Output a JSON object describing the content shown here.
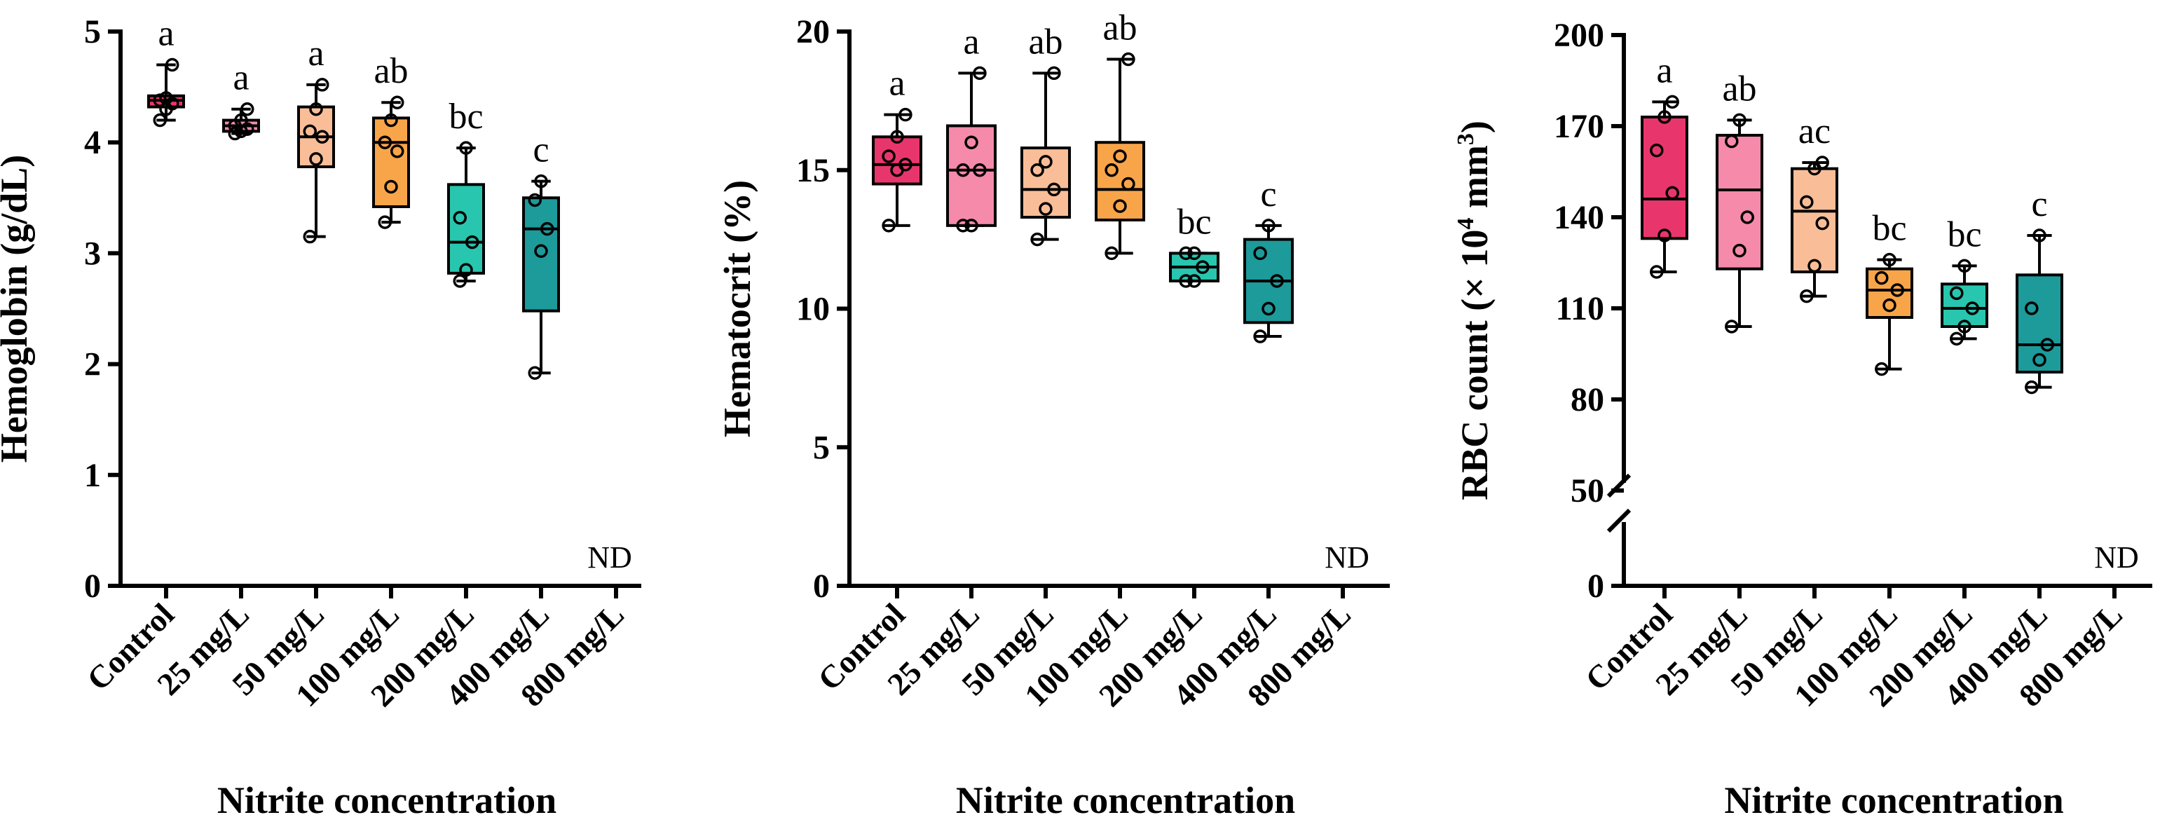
{
  "chart_data": [
    {
      "type": "box",
      "ylabel": "Hemoglobin (g/dL)",
      "xlabel": "Nitrite concentration",
      "categories": [
        "Control",
        "25 mg/L",
        "50 mg/L",
        "100 mg/L",
        "200 mg/L",
        "400 mg/L",
        "800 mg/L"
      ],
      "ylim": [
        0,
        5
      ],
      "yticks": [
        "0",
        "1",
        "2",
        "3",
        "4",
        "5"
      ],
      "nd_label": "ND",
      "colors": [
        "#e8366d",
        "#f58aaa",
        "#f9be98",
        "#f8a54a",
        "#28c6ae",
        "#1d9a9a"
      ],
      "groups": [
        {
          "label": "a",
          "min": 4.2,
          "q1": 4.32,
          "median": 4.38,
          "q3": 4.42,
          "max": 4.7,
          "points": [
            4.2,
            4.3,
            4.35,
            4.38,
            4.4,
            4.7
          ]
        },
        {
          "label": "a",
          "min": 4.08,
          "q1": 4.1,
          "median": 4.15,
          "q3": 4.2,
          "max": 4.3,
          "points": [
            4.08,
            4.1,
            4.12,
            4.15,
            4.2,
            4.3
          ]
        },
        {
          "label": "a",
          "min": 3.15,
          "q1": 3.78,
          "median": 4.05,
          "q3": 4.32,
          "max": 4.52,
          "points": [
            3.15,
            3.85,
            4.05,
            4.1,
            4.3,
            4.52
          ]
        },
        {
          "label": "ab",
          "min": 3.28,
          "q1": 3.42,
          "median": 4.0,
          "q3": 4.22,
          "max": 4.36,
          "points": [
            3.28,
            3.6,
            3.92,
            4.0,
            4.2,
            4.36
          ]
        },
        {
          "label": "bc",
          "min": 2.75,
          "q1": 2.82,
          "median": 3.1,
          "q3": 3.62,
          "max": 3.95,
          "points": [
            2.75,
            2.85,
            3.1,
            3.32,
            3.95
          ]
        },
        {
          "label": "c",
          "min": 1.92,
          "q1": 2.48,
          "median": 3.22,
          "q3": 3.5,
          "max": 3.65,
          "points": [
            1.92,
            3.02,
            3.22,
            3.48,
            3.65
          ]
        },
        null
      ]
    },
    {
      "type": "box",
      "ylabel": "Hematocrit (%)",
      "xlabel": "Nitrite concentration",
      "categories": [
        "Control",
        "25 mg/L",
        "50 mg/L",
        "100 mg/L",
        "200 mg/L",
        "400 mg/L",
        "800 mg/L"
      ],
      "ylim": [
        0,
        20
      ],
      "yticks": [
        "0",
        "5",
        "10",
        "15",
        "20"
      ],
      "nd_label": "ND",
      "colors": [
        "#e8366d",
        "#f58aaa",
        "#f9be98",
        "#f8a54a",
        "#28c6ae",
        "#1d9a9a"
      ],
      "groups": [
        {
          "label": "a",
          "min": 13.0,
          "q1": 14.5,
          "median": 15.2,
          "q3": 16.2,
          "max": 17.0,
          "points": [
            13.0,
            15.0,
            15.2,
            15.5,
            16.2,
            17.0
          ]
        },
        {
          "label": "a",
          "min": 13.0,
          "q1": 13.0,
          "median": 15.0,
          "q3": 16.6,
          "max": 18.5,
          "points": [
            13.0,
            13.0,
            15.0,
            15.0,
            16.0,
            18.5
          ]
        },
        {
          "label": "ab",
          "min": 12.5,
          "q1": 13.3,
          "median": 14.3,
          "q3": 15.8,
          "max": 18.5,
          "points": [
            12.5,
            13.6,
            14.3,
            15.0,
            15.3,
            18.5
          ]
        },
        {
          "label": "ab",
          "min": 12.0,
          "q1": 13.2,
          "median": 14.3,
          "q3": 16.0,
          "max": 19.0,
          "points": [
            12.0,
            13.7,
            14.5,
            15.0,
            15.5,
            19.0
          ]
        },
        {
          "label": "bc",
          "min": 11.0,
          "q1": 11.0,
          "median": 11.5,
          "q3": 12.0,
          "max": 12.0,
          "points": [
            11.0,
            11.0,
            11.5,
            12.0,
            12.0
          ]
        },
        {
          "label": "c",
          "min": 9.0,
          "q1": 9.5,
          "median": 11.0,
          "q3": 12.5,
          "max": 13.0,
          "points": [
            9.0,
            10.0,
            11.0,
            12.0,
            13.0
          ]
        },
        null
      ]
    },
    {
      "type": "box",
      "ylabel_parts": [
        "RBC count (× 10",
        "4",
        " mm",
        "3",
        ")"
      ],
      "xlabel": "Nitrite concentration",
      "categories": [
        "Control",
        "25 mg/L",
        "50 mg/L",
        "100 mg/L",
        "200 mg/L",
        "400 mg/L",
        "800 mg/L"
      ],
      "ylim": [
        50,
        200
      ],
      "yticks": [
        "50",
        "80",
        "110",
        "140",
        "170",
        "200"
      ],
      "ytick_zero": "0",
      "axis_break": true,
      "nd_label": "ND",
      "colors": [
        "#e8366d",
        "#f58aaa",
        "#f9be98",
        "#f8a54a",
        "#28c6ae",
        "#1d9a9a"
      ],
      "groups": [
        {
          "label": "a",
          "min": 122,
          "q1": 133,
          "median": 146,
          "q3": 173,
          "max": 178,
          "points": [
            122,
            134,
            148,
            162,
            173,
            178
          ]
        },
        {
          "label": "ab",
          "min": 104,
          "q1": 123,
          "median": 149,
          "q3": 167,
          "max": 172,
          "points": [
            104,
            129,
            140,
            165,
            172
          ]
        },
        {
          "label": "ac",
          "min": 114,
          "q1": 122,
          "median": 142,
          "q3": 156,
          "max": 158,
          "points": [
            114,
            124,
            138,
            145,
            156,
            158
          ]
        },
        {
          "label": "bc",
          "min": 90,
          "q1": 107,
          "median": 116,
          "q3": 123,
          "max": 126,
          "points": [
            90,
            111,
            116,
            120,
            126
          ]
        },
        {
          "label": "bc",
          "min": 100,
          "q1": 104,
          "median": 110,
          "q3": 118,
          "max": 124,
          "points": [
            100,
            104,
            110,
            115,
            124
          ]
        },
        {
          "label": "c",
          "min": 84,
          "q1": 89,
          "median": 98,
          "q3": 121,
          "max": 134,
          "points": [
            84,
            93,
            98,
            110,
            134
          ]
        },
        null
      ]
    }
  ]
}
